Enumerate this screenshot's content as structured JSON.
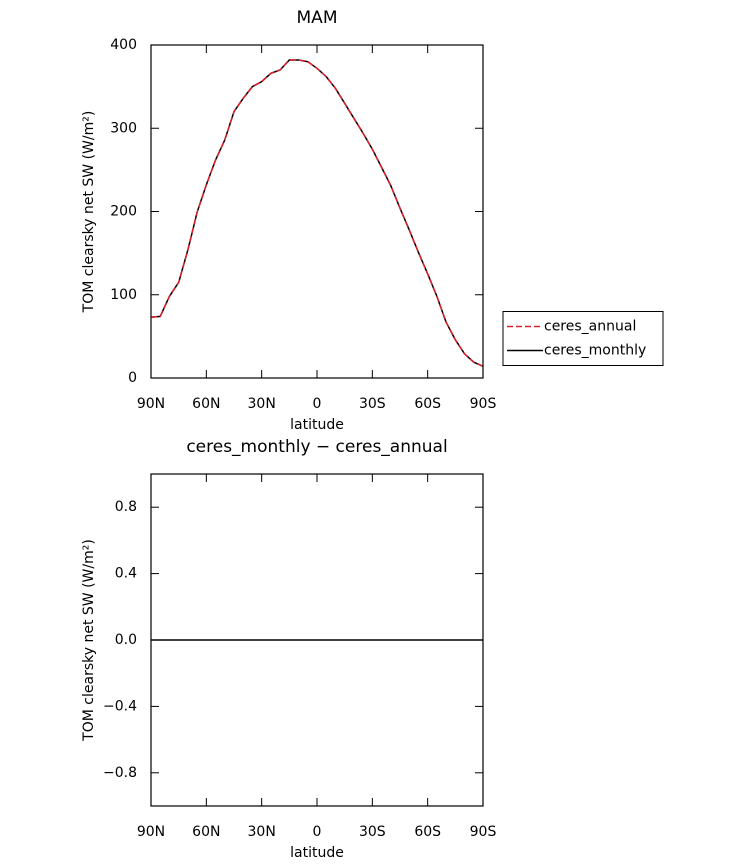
{
  "chart_data": [
    {
      "type": "line",
      "title": "MAM",
      "xlabel": "latitude",
      "ylabel": "TOM clearsky net SW (W/m²)",
      "x": [
        90,
        85,
        80,
        75,
        70,
        65,
        60,
        55,
        50,
        45,
        40,
        35,
        30,
        25,
        20,
        15,
        10,
        5,
        0,
        -5,
        -10,
        -15,
        -20,
        -25,
        -30,
        -35,
        -40,
        -45,
        -50,
        -55,
        -60,
        -65,
        -70,
        -75,
        -80,
        -85,
        -90
      ],
      "series": [
        {
          "name": "ceres_annual",
          "color": "#e0202a",
          "dash": true,
          "values": [
            73,
            74,
            98,
            115,
            154,
            199,
            232,
            262,
            286,
            320,
            336,
            350,
            356,
            366,
            370,
            382,
            382,
            380,
            372,
            362,
            348,
            330,
            312,
            294,
            275,
            253,
            231,
            204,
            178,
            151,
            125,
            98,
            67,
            46,
            29,
            19,
            14
          ]
        },
        {
          "name": "ceres_monthly",
          "color": "#000000",
          "dash": false,
          "values": [
            73,
            74,
            98,
            115,
            154,
            199,
            232,
            262,
            286,
            320,
            336,
            350,
            356,
            366,
            370,
            382,
            382,
            380,
            372,
            362,
            348,
            330,
            312,
            294,
            275,
            253,
            231,
            204,
            178,
            151,
            125,
            98,
            67,
            46,
            29,
            19,
            14
          ]
        }
      ],
      "xlim": [
        90,
        -90
      ],
      "xticks": [
        {
          "value": 90,
          "label": "90N"
        },
        {
          "value": 60,
          "label": "60N"
        },
        {
          "value": 30,
          "label": "30N"
        },
        0,
        {
          "value": -30,
          "label": "30S"
        },
        {
          "value": -60,
          "label": "60S"
        },
        {
          "value": -90,
          "label": "90S"
        }
      ],
      "ylim": [
        0,
        400
      ],
      "yticks": [
        0,
        100,
        200,
        300,
        400
      ],
      "legend": "right"
    },
    {
      "type": "line",
      "title": "ceres_monthly − ceres_annual",
      "xlabel": "latitude",
      "ylabel": "TOM clearsky net SW (W/m²)",
      "x": [
        90,
        -90
      ],
      "values": [
        0,
        0
      ],
      "color": "#000000",
      "xlim": [
        90,
        -90
      ],
      "xticks": [
        {
          "value": 90,
          "label": "90N"
        },
        {
          "value": 60,
          "label": "60N"
        },
        {
          "value": 30,
          "label": "30N"
        },
        0,
        {
          "value": -30,
          "label": "30S"
        },
        {
          "value": -60,
          "label": "60S"
        },
        {
          "value": -90,
          "label": "90S"
        }
      ],
      "ylim": [
        -1,
        1
      ],
      "yticks": [
        {
          "value": -0.8,
          "label": "−0.8"
        },
        {
          "value": -0.4,
          "label": "−0.4"
        },
        {
          "value": 0,
          "label": "0.0"
        },
        0.4,
        0.8
      ]
    }
  ]
}
